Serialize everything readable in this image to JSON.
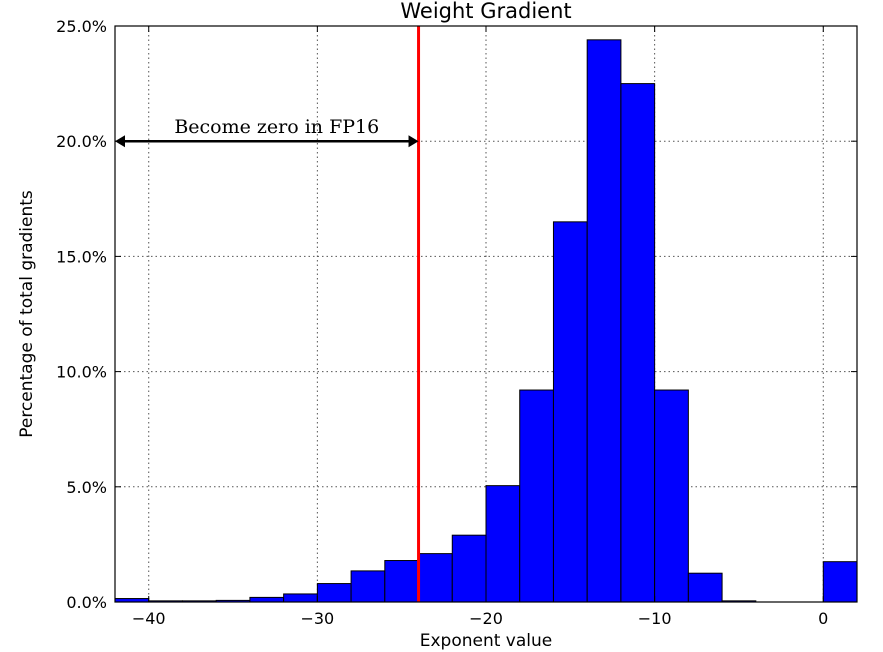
{
  "chart_data": {
    "type": "bar",
    "title": "Weight Gradient",
    "xlabel": "Exponent value",
    "ylabel": "Percentage of total gradients",
    "xlim": [
      -42,
      2
    ],
    "ylim": [
      0,
      25
    ],
    "grid": true,
    "bar_color": "#0000ff",
    "threshold_color": "#ff0000",
    "xticks": [
      -40,
      -30,
      -20,
      -10,
      0
    ],
    "xtick_labels": [
      "−40",
      "−30",
      "−20",
      "−10",
      "0"
    ],
    "yticks": [
      0,
      5,
      10,
      15,
      20,
      25
    ],
    "ytick_labels": [
      "0.0%",
      "5.0%",
      "10.0%",
      "15.0%",
      "20.0%",
      "25.0%"
    ],
    "bin_width": 2,
    "bins": [
      {
        "x0": -42,
        "value": 0.15
      },
      {
        "x0": -40,
        "value": 0.05
      },
      {
        "x0": -38,
        "value": 0.05
      },
      {
        "x0": -36,
        "value": 0.07
      },
      {
        "x0": -34,
        "value": 0.2
      },
      {
        "x0": -32,
        "value": 0.35
      },
      {
        "x0": -30,
        "value": 0.8
      },
      {
        "x0": -28,
        "value": 1.35
      },
      {
        "x0": -26,
        "value": 1.8
      },
      {
        "x0": -24,
        "value": 2.1
      },
      {
        "x0": -22,
        "value": 2.9
      },
      {
        "x0": -20,
        "value": 5.05
      },
      {
        "x0": -18,
        "value": 9.2
      },
      {
        "x0": -16,
        "value": 16.5
      },
      {
        "x0": -14,
        "value": 24.4
      },
      {
        "x0": -12,
        "value": 22.5
      },
      {
        "x0": -10,
        "value": 9.2
      },
      {
        "x0": -8,
        "value": 1.25
      },
      {
        "x0": -6,
        "value": 0.05
      },
      {
        "x0": -4,
        "value": 0.0
      },
      {
        "x0": -2,
        "value": 0.0
      },
      {
        "x0": 0,
        "value": 1.75
      }
    ],
    "threshold_x": -24,
    "annotation": {
      "text": "Become zero in FP16",
      "arrow_from_x": -42,
      "arrow_to_x": -24,
      "arrow_y": 20
    }
  }
}
